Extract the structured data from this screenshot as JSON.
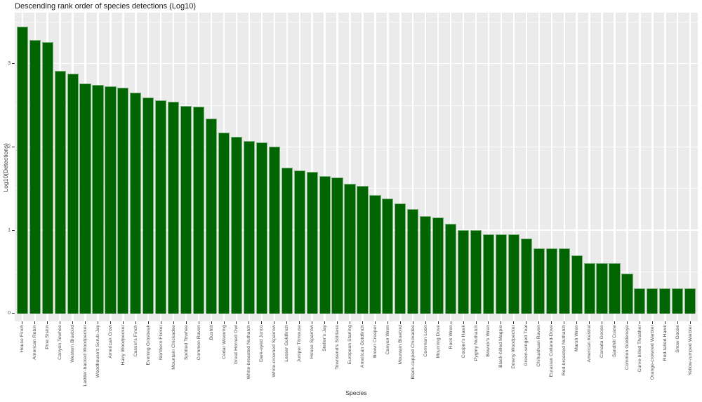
{
  "chart": {
    "title": "Descending rank order of species detections (Log10)",
    "xlabel": "Species",
    "ylabel": "Log10(Detections)"
  },
  "chart_data": {
    "type": "bar",
    "title": "Descending rank order of species detections (Log10)",
    "xlabel": "Species",
    "ylabel": "Log10(Detections)",
    "legend_position": "none",
    "grid": true,
    "panel_bg": "#EBEBEB",
    "gridline_color": "#FFFFFF",
    "bar_color": "#006400",
    "tick_text_color": "#4d4d4d",
    "ylim": [
      -0.1,
      3.6
    ],
    "yticks": [
      0,
      1,
      2,
      3
    ],
    "yticks_minor": [
      0.5,
      1.5,
      2.5,
      3.5
    ],
    "categories": [
      "House Finch",
      "American Robin",
      "Pine Siskin",
      "Canyon Towhee",
      "Western Bluebird",
      "Ladder-backed Woodpecker",
      "Woodhouse's Scrub-Jay",
      "American Crow",
      "Hairy Woodpecker",
      "Cassin's Finch",
      "Evening Grosbeak",
      "Northern Flicker",
      "Mountain Chickadee",
      "Spotted Towhee",
      "Common Raven",
      "Bushtit",
      "Cedar Waxwing",
      "Great Horned Owl",
      "White-breasted Nuthatch",
      "Dark-eyed Junco",
      "White-crowned Sparrow",
      "Lesser Goldfinch",
      "Juniper Titmouse",
      "House Sparrow",
      "Steller's Jay",
      "Townsend's Solitaire",
      "European Starling",
      "American Goldfinch",
      "Brown Creeper",
      "Canyon Wren",
      "Mountain Bluebird",
      "Black-capped Chickadee",
      "Common Loon",
      "Mourning Dove",
      "Rock Wren",
      "Cooper's Hawk",
      "Pygmy Nuthatch",
      "Bewick's Wren",
      "Black-billed Magpie",
      "Downy Woodpecker",
      "Green-winged Teal",
      "Chihuahuan Raven",
      "Eurasian Collared-Dove",
      "Red-breasted Nuthatch",
      "Marsh Wren",
      "American Kestrel",
      "Canada Goose",
      "Sandhill Crane",
      "Common Goldeneye",
      "Curve-billed Thrasher",
      "Orange-crowned Warbler",
      "Red-tailed Hawk",
      "Snow Goose",
      "Yellow-rumped Warbler"
    ],
    "values": [
      3.44,
      3.28,
      3.26,
      2.91,
      2.88,
      2.76,
      2.74,
      2.73,
      2.71,
      2.65,
      2.59,
      2.56,
      2.54,
      2.49,
      2.48,
      2.34,
      2.17,
      2.12,
      2.07,
      2.05,
      2.0,
      1.75,
      1.72,
      1.7,
      1.65,
      1.63,
      1.56,
      1.53,
      1.42,
      1.38,
      1.32,
      1.25,
      1.17,
      1.15,
      1.08,
      1.0,
      1.0,
      0.95,
      0.95,
      0.95,
      0.9,
      0.78,
      0.78,
      0.78,
      0.7,
      0.6,
      0.6,
      0.6,
      0.48,
      0.3,
      0.3,
      0.3,
      0.3,
      0.3
    ]
  }
}
